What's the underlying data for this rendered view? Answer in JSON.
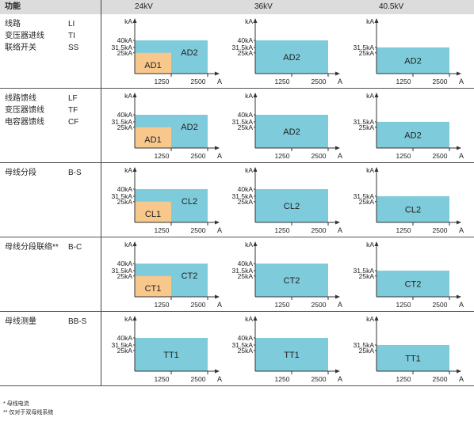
{
  "header": {
    "function_label": "功能",
    "voltages": [
      "24kV",
      "36kV",
      "40.5kV"
    ]
  },
  "rows": [
    {
      "functions": [
        {
          "name": "线路",
          "code": "LI"
        },
        {
          "name": "变压器进线",
          "code": "TI"
        },
        {
          "name": "联络开关",
          "code": "SS"
        }
      ]
    },
    {
      "functions": [
        {
          "name": "线路馈线",
          "code": "LF"
        },
        {
          "name": "变压器馈线",
          "code": "TF"
        },
        {
          "name": "电容器馈线",
          "code": "CF"
        }
      ]
    },
    {
      "functions": [
        {
          "name": "母线分段",
          "code": "B-S"
        }
      ]
    },
    {
      "functions": [
        {
          "name": "母线分段联络**",
          "code": "B-C"
        }
      ]
    },
    {
      "functions": [
        {
          "name": "母线测量",
          "code": "BB-S"
        }
      ]
    }
  ],
  "footnotes": [
    "* 母线电流",
    "** 仅对于双母线系统"
  ],
  "colors": {
    "large_zone": "#7ecbdb",
    "small_zone": "#f8c78c",
    "axis": "#333333",
    "header_bg": "#dcdcdc"
  },
  "chart_data": [
    {
      "type": "area",
      "row": 1,
      "voltage": "24kV",
      "xlabel": "A",
      "ylabel": "kA",
      "x_ticks": [
        "1250",
        "2500"
      ],
      "y_ticks": [
        "25kA",
        "31.5kA",
        "40kA"
      ],
      "ylim_ka": [
        0,
        40
      ],
      "xlim_a": [
        0,
        2500
      ],
      "zones": [
        {
          "label": "AD2",
          "max_current_a": 2500,
          "max_short_circuit_ka": 40,
          "color": "large_zone"
        },
        {
          "label": "AD1",
          "max_current_a": 1250,
          "max_short_circuit_ka": 25,
          "color": "small_zone"
        }
      ]
    },
    {
      "type": "area",
      "row": 1,
      "voltage": "36kV",
      "xlabel": "A",
      "ylabel": "kA",
      "x_ticks": [
        "1250",
        "2500"
      ],
      "y_ticks": [
        "25kA",
        "31.5kA",
        "40kA"
      ],
      "ylim_ka": [
        0,
        40
      ],
      "xlim_a": [
        0,
        2500
      ],
      "zones": [
        {
          "label": "AD2",
          "max_current_a": 2500,
          "max_short_circuit_ka": 40,
          "color": "large_zone"
        }
      ]
    },
    {
      "type": "area",
      "row": 1,
      "voltage": "40.5kV",
      "xlabel": "A",
      "ylabel": "kA",
      "x_ticks": [
        "1250",
        "2500"
      ],
      "y_ticks": [
        "25kA",
        "31.5kA"
      ],
      "ylim_ka": [
        0,
        40
      ],
      "xlim_a": [
        0,
        2500
      ],
      "zones": [
        {
          "label": "AD2",
          "max_current_a": 2500,
          "max_short_circuit_ka": 31.5,
          "color": "large_zone"
        }
      ]
    },
    {
      "type": "area",
      "row": 2,
      "voltage": "24kV",
      "xlabel": "A",
      "ylabel": "kA",
      "x_ticks": [
        "1250",
        "2500"
      ],
      "y_ticks": [
        "25kA",
        "31.5kA",
        "40kA"
      ],
      "ylim_ka": [
        0,
        40
      ],
      "xlim_a": [
        0,
        2500
      ],
      "zones": [
        {
          "label": "AD2",
          "max_current_a": 2500,
          "max_short_circuit_ka": 40,
          "color": "large_zone"
        },
        {
          "label": "AD1",
          "max_current_a": 1250,
          "max_short_circuit_ka": 25,
          "color": "small_zone"
        }
      ]
    },
    {
      "type": "area",
      "row": 2,
      "voltage": "36kV",
      "xlabel": "A",
      "ylabel": "kA",
      "x_ticks": [
        "1250",
        "2500"
      ],
      "y_ticks": [
        "25kA",
        "31.5kA",
        "40kA"
      ],
      "ylim_ka": [
        0,
        40
      ],
      "xlim_a": [
        0,
        2500
      ],
      "zones": [
        {
          "label": "AD2",
          "max_current_a": 2500,
          "max_short_circuit_ka": 40,
          "color": "large_zone"
        }
      ]
    },
    {
      "type": "area",
      "row": 2,
      "voltage": "40.5kV",
      "xlabel": "A",
      "ylabel": "kA",
      "x_ticks": [
        "1250",
        "2500"
      ],
      "y_ticks": [
        "25kA",
        "31.5kA"
      ],
      "ylim_ka": [
        0,
        40
      ],
      "xlim_a": [
        0,
        2500
      ],
      "zones": [
        {
          "label": "AD2",
          "max_current_a": 2500,
          "max_short_circuit_ka": 31.5,
          "color": "large_zone"
        }
      ]
    },
    {
      "type": "area",
      "row": 3,
      "voltage": "24kV",
      "xlabel": "A",
      "ylabel": "kA",
      "x_ticks": [
        "1250",
        "2500"
      ],
      "y_ticks": [
        "25kA",
        "31.5kA",
        "40kA"
      ],
      "ylim_ka": [
        0,
        40
      ],
      "xlim_a": [
        0,
        2500
      ],
      "zones": [
        {
          "label": "CL2",
          "max_current_a": 2500,
          "max_short_circuit_ka": 40,
          "color": "large_zone"
        },
        {
          "label": "CL1",
          "max_current_a": 1250,
          "max_short_circuit_ka": 25,
          "color": "small_zone"
        }
      ]
    },
    {
      "type": "area",
      "row": 3,
      "voltage": "36kV",
      "xlabel": "A",
      "ylabel": "kA",
      "x_ticks": [
        "1250",
        "2500"
      ],
      "y_ticks": [
        "25kA",
        "31.5kA",
        "40kA"
      ],
      "ylim_ka": [
        0,
        40
      ],
      "xlim_a": [
        0,
        2500
      ],
      "zones": [
        {
          "label": "CL2",
          "max_current_a": 2500,
          "max_short_circuit_ka": 40,
          "color": "large_zone"
        }
      ]
    },
    {
      "type": "area",
      "row": 3,
      "voltage": "40.5kV",
      "xlabel": "A",
      "ylabel": "kA",
      "x_ticks": [
        "1250",
        "2500"
      ],
      "y_ticks": [
        "25kA",
        "31.5kA"
      ],
      "ylim_ka": [
        0,
        40
      ],
      "xlim_a": [
        0,
        2500
      ],
      "zones": [
        {
          "label": "CL2",
          "max_current_a": 2500,
          "max_short_circuit_ka": 31.5,
          "color": "large_zone"
        }
      ]
    },
    {
      "type": "area",
      "row": 4,
      "voltage": "24kV",
      "xlabel": "A",
      "ylabel": "kA",
      "x_ticks": [
        "1250",
        "2500"
      ],
      "y_ticks": [
        "25kA",
        "31.5kA",
        "40kA"
      ],
      "ylim_ka": [
        0,
        40
      ],
      "xlim_a": [
        0,
        2500
      ],
      "zones": [
        {
          "label": "CT2",
          "max_current_a": 2500,
          "max_short_circuit_ka": 40,
          "color": "large_zone"
        },
        {
          "label": "CT1",
          "max_current_a": 1250,
          "max_short_circuit_ka": 25,
          "color": "small_zone"
        }
      ]
    },
    {
      "type": "area",
      "row": 4,
      "voltage": "36kV",
      "xlabel": "A",
      "ylabel": "kA",
      "x_ticks": [
        "1250",
        "2500"
      ],
      "y_ticks": [
        "25kA",
        "31.5kA",
        "40kA"
      ],
      "ylim_ka": [
        0,
        40
      ],
      "xlim_a": [
        0,
        2500
      ],
      "zones": [
        {
          "label": "CT2",
          "max_current_a": 2500,
          "max_short_circuit_ka": 40,
          "color": "large_zone"
        }
      ]
    },
    {
      "type": "area",
      "row": 4,
      "voltage": "40.5kV",
      "xlabel": "A",
      "ylabel": "kA",
      "x_ticks": [
        "1250",
        "2500"
      ],
      "y_ticks": [
        "25kA",
        "31.5kA"
      ],
      "ylim_ka": [
        0,
        40
      ],
      "xlim_a": [
        0,
        2500
      ],
      "zones": [
        {
          "label": "CT2",
          "max_current_a": 2500,
          "max_short_circuit_ka": 31.5,
          "color": "large_zone"
        }
      ]
    },
    {
      "type": "area",
      "row": 5,
      "voltage": "24kV",
      "xlabel": "A",
      "ylabel": "kA",
      "x_ticks": [
        "1250",
        "2500"
      ],
      "y_ticks": [
        "25kA",
        "31.5kA",
        "40kA"
      ],
      "ylim_ka": [
        0,
        40
      ],
      "xlim_a": [
        0,
        2500
      ],
      "zones": [
        {
          "label": "TT1",
          "max_current_a": 2500,
          "max_short_circuit_ka": 40,
          "color": "large_zone"
        }
      ]
    },
    {
      "type": "area",
      "row": 5,
      "voltage": "36kV",
      "xlabel": "A",
      "ylabel": "kA",
      "x_ticks": [
        "1250",
        "2500"
      ],
      "y_ticks": [
        "25kA",
        "31.5kA",
        "40kA"
      ],
      "ylim_ka": [
        0,
        40
      ],
      "xlim_a": [
        0,
        2500
      ],
      "zones": [
        {
          "label": "TT1",
          "max_current_a": 2500,
          "max_short_circuit_ka": 40,
          "color": "large_zone"
        }
      ]
    },
    {
      "type": "area",
      "row": 5,
      "voltage": "40.5kV",
      "xlabel": "A",
      "ylabel": "kA",
      "x_ticks": [
        "1250",
        "2500"
      ],
      "y_ticks": [
        "25kA",
        "31.5kA"
      ],
      "ylim_ka": [
        0,
        40
      ],
      "xlim_a": [
        0,
        2500
      ],
      "zones": [
        {
          "label": "TT1",
          "max_current_a": 2500,
          "max_short_circuit_ka": 31.5,
          "color": "large_zone"
        }
      ]
    }
  ]
}
